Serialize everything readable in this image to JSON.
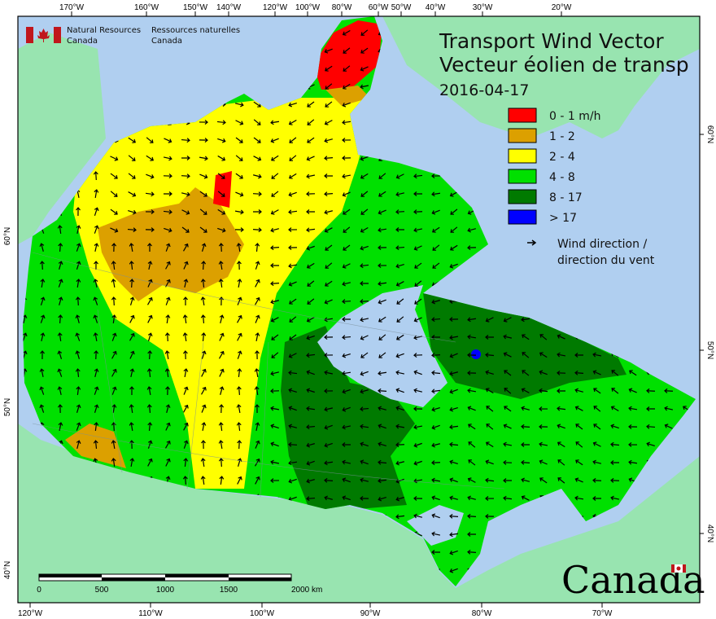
{
  "map": {
    "title_en": "Transport Wind Vector",
    "title_fr": "Vecteur éolien de transp",
    "date": "2016-04-17",
    "org_en": [
      "Natural Resources",
      "Canada"
    ],
    "org_fr": [
      "Ressources naturelles",
      "Canada"
    ],
    "wordmark": "Canada",
    "colors": {
      "ocean": "#b0cff0",
      "land": "#98e4b0"
    }
  },
  "legend": {
    "items": [
      {
        "label": "0 - 1 m/h",
        "color": "#ff0000"
      },
      {
        "label": "1 - 2",
        "color": "#dca000"
      },
      {
        "label": "2 - 4",
        "color": "#ffff00"
      },
      {
        "label": "4 - 8",
        "color": "#00e000"
      },
      {
        "label": "8 - 17",
        "color": "#007a00"
      },
      {
        "label": "> 17",
        "color": "#0000ff"
      }
    ],
    "arrow_line1": "Wind direction /",
    "arrow_line2": "direction du vent",
    "arrow_icon": "arrow-icon"
  },
  "axes": {
    "top": [
      "170°W",
      "160°W",
      "150°W",
      "140°W",
      "120°W",
      "100°W",
      "80°W",
      "60°W",
      "50°W",
      "40°W",
      "30°W",
      "20°W"
    ],
    "bottom": [
      "120°W",
      "110°W",
      "100°W",
      "90°W",
      "80°W",
      "70°W"
    ],
    "left": [
      "60°N",
      "50°N",
      "40°N"
    ],
    "right": [
      "60°N",
      "50°N",
      "40°N"
    ]
  },
  "scalebar": {
    "labels": [
      "0",
      "500",
      "1000",
      "1500",
      "2000 km"
    ]
  }
}
